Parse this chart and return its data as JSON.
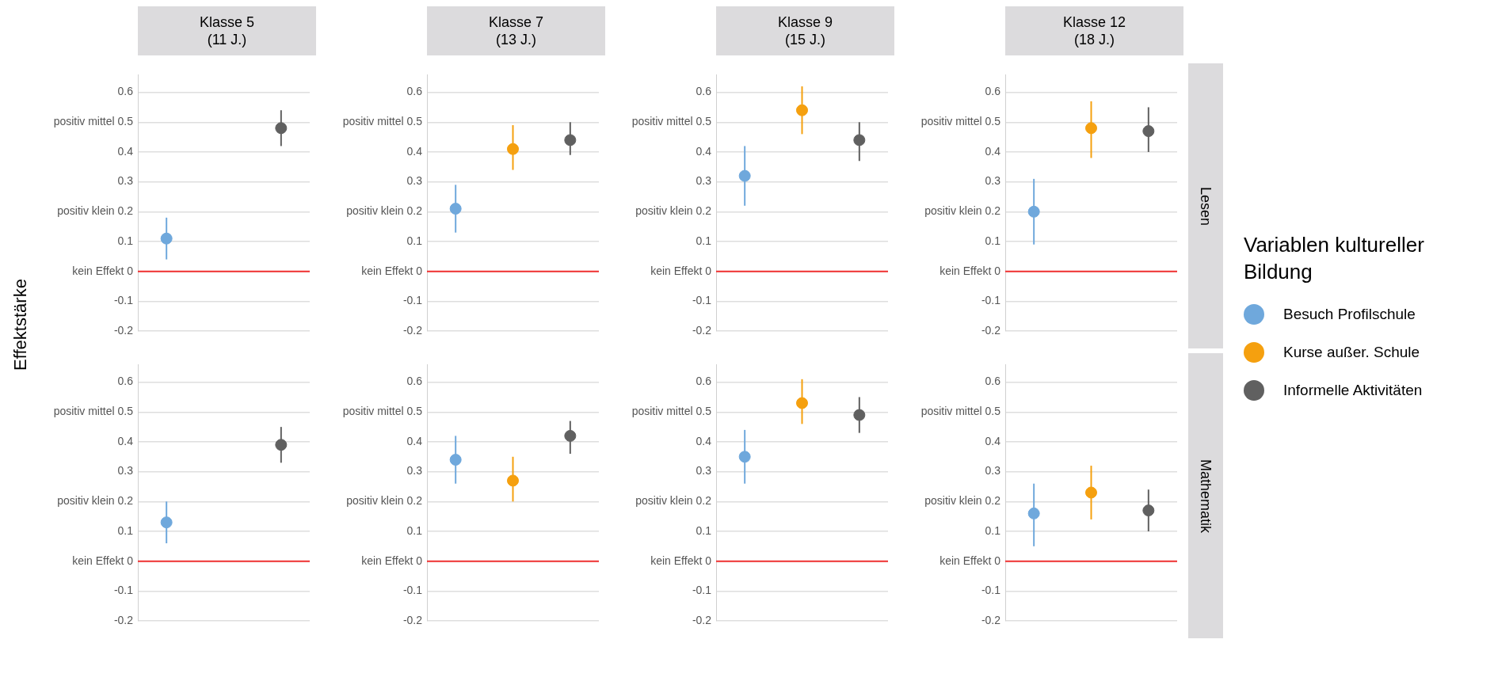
{
  "chart_data": [
    {
      "type": "scatter",
      "title": "Klasse 5\n(11 J.)",
      "ylabel": "Effektstärke",
      "categories": [
        null,
        null,
        null
      ],
      "ylim": [
        -0.2,
        0.66
      ],
      "yticks": [
        {
          "value": -0.2,
          "label": "-0.2"
        },
        {
          "value": -0.1,
          "label": "-0.1"
        },
        {
          "value": 0,
          "label": "kein Effekt 0"
        },
        {
          "value": 0.1,
          "label": "0.1"
        },
        {
          "value": 0.2,
          "label": "positiv klein 0.2"
        },
        {
          "value": 0.3,
          "label": "0.3"
        },
        {
          "value": 0.4,
          "label": "0.4"
        },
        {
          "value": 0.5,
          "label": "positiv mittel 0.5"
        },
        {
          "value": 0.6,
          "label": "0.6"
        }
      ],
      "grid": "y",
      "marker": "circle",
      "ref_lines": [
        {
          "axis": "y",
          "value": 0,
          "color": "#f03030"
        }
      ],
      "series": [
        {
          "color": "#6fa8dc",
          "values": [
            0.11,
            null,
            null
          ],
          "errors": [
            [
              0.04,
              0.18
            ],
            null,
            null
          ]
        },
        {
          "color": "#606060",
          "values": [
            null,
            null,
            0.48
          ],
          "errors": [
            null,
            null,
            [
              0.42,
              0.54
            ]
          ]
        }
      ]
    },
    {
      "type": "scatter",
      "title": "Klasse 7\n(13 J.)",
      "categories": [
        null,
        null,
        null
      ],
      "ylim": [
        -0.2,
        0.66
      ],
      "yticks": [
        {
          "value": -0.2,
          "label": "-0.2"
        },
        {
          "value": -0.1,
          "label": "-0.1"
        },
        {
          "value": 0,
          "label": "kein Effekt 0"
        },
        {
          "value": 0.1,
          "label": "0.1"
        },
        {
          "value": 0.2,
          "label": "positiv klein 0.2"
        },
        {
          "value": 0.3,
          "label": "0.3"
        },
        {
          "value": 0.4,
          "label": "0.4"
        },
        {
          "value": 0.5,
          "label": "positiv mittel 0.5"
        },
        {
          "value": 0.6,
          "label": "0.6"
        }
      ],
      "grid": "y",
      "marker": "circle",
      "ref_lines": [
        {
          "axis": "y",
          "value": 0,
          "color": "#f03030"
        }
      ],
      "series": [
        {
          "color": "#6fa8dc",
          "values": [
            0.21,
            null,
            null
          ],
          "errors": [
            [
              0.13,
              0.29
            ],
            null,
            null
          ]
        },
        {
          "color": "#f5a00f",
          "values": [
            null,
            0.41,
            null
          ],
          "errors": [
            null,
            [
              0.34,
              0.49
            ],
            null
          ]
        },
        {
          "color": "#606060",
          "values": [
            null,
            null,
            0.44
          ],
          "errors": [
            null,
            null,
            [
              0.39,
              0.5
            ]
          ]
        }
      ]
    },
    {
      "type": "scatter",
      "title": "Klasse 9\n(15 J.)",
      "categories": [
        null,
        null,
        null
      ],
      "ylim": [
        -0.2,
        0.66
      ],
      "yticks": [
        {
          "value": -0.2,
          "label": "-0.2"
        },
        {
          "value": -0.1,
          "label": "-0.1"
        },
        {
          "value": 0,
          "label": "kein Effekt 0"
        },
        {
          "value": 0.1,
          "label": "0.1"
        },
        {
          "value": 0.2,
          "label": "positiv klein 0.2"
        },
        {
          "value": 0.3,
          "label": "0.3"
        },
        {
          "value": 0.4,
          "label": "0.4"
        },
        {
          "value": 0.5,
          "label": "positiv mittel 0.5"
        },
        {
          "value": 0.6,
          "label": "0.6"
        }
      ],
      "grid": "y",
      "marker": "circle",
      "ref_lines": [
        {
          "axis": "y",
          "value": 0,
          "color": "#f03030"
        }
      ],
      "series": [
        {
          "color": "#6fa8dc",
          "values": [
            0.32,
            null,
            null
          ],
          "errors": [
            [
              0.22,
              0.42
            ],
            null,
            null
          ]
        },
        {
          "color": "#f5a00f",
          "values": [
            null,
            0.54,
            null
          ],
          "errors": [
            null,
            [
              0.46,
              0.62
            ],
            null
          ]
        },
        {
          "color": "#606060",
          "values": [
            null,
            null,
            0.44
          ],
          "errors": [
            null,
            null,
            [
              0.37,
              0.5
            ]
          ]
        }
      ]
    },
    {
      "type": "scatter",
      "title": "Klasse 12\n(18 J.)",
      "y2label": "Lesen",
      "legend": "right",
      "legend_title": "Variablen kultureller Bildung",
      "categories": [
        null,
        null,
        null
      ],
      "ylim": [
        -0.2,
        0.66
      ],
      "yticks": [
        {
          "value": -0.2,
          "label": "-0.2"
        },
        {
          "value": -0.1,
          "label": "-0.1"
        },
        {
          "value": 0,
          "label": "kein Effekt 0"
        },
        {
          "value": 0.1,
          "label": "0.1"
        },
        {
          "value": 0.2,
          "label": "positiv klein 0.2"
        },
        {
          "value": 0.3,
          "label": "0.3"
        },
        {
          "value": 0.4,
          "label": "0.4"
        },
        {
          "value": 0.5,
          "label": "positiv mittel 0.5"
        },
        {
          "value": 0.6,
          "label": "0.6"
        }
      ],
      "grid": "y",
      "marker": "circle",
      "ref_lines": [
        {
          "axis": "y",
          "value": 0,
          "color": "#f03030"
        }
      ],
      "series": [
        {
          "name": "Besuch Profilschule",
          "color": "#6fa8dc",
          "values": [
            0.2,
            null,
            null
          ],
          "errors": [
            [
              0.09,
              0.31
            ],
            null,
            null
          ]
        },
        {
          "name": "Kurse außer. Schule",
          "color": "#f5a00f",
          "values": [
            null,
            0.48,
            null
          ],
          "errors": [
            null,
            [
              0.38,
              0.57
            ],
            null
          ]
        },
        {
          "name": "Informelle Aktivitäten",
          "color": "#606060",
          "values": [
            null,
            null,
            0.47
          ],
          "errors": [
            null,
            null,
            [
              0.4,
              0.55
            ]
          ]
        }
      ]
    },
    {
      "type": "scatter",
      "categories": [
        null,
        null,
        null
      ],
      "ylim": [
        -0.2,
        0.66
      ],
      "yticks": [
        {
          "value": -0.2,
          "label": "-0.2"
        },
        {
          "value": -0.1,
          "label": "-0.1"
        },
        {
          "value": 0,
          "label": "kein Effekt 0"
        },
        {
          "value": 0.1,
          "label": "0.1"
        },
        {
          "value": 0.2,
          "label": "positiv klein 0.2"
        },
        {
          "value": 0.3,
          "label": "0.3"
        },
        {
          "value": 0.4,
          "label": "0.4"
        },
        {
          "value": 0.5,
          "label": "positiv mittel 0.5"
        },
        {
          "value": 0.6,
          "label": "0.6"
        }
      ],
      "grid": "y",
      "marker": "circle",
      "ref_lines": [
        {
          "axis": "y",
          "value": 0,
          "color": "#f03030"
        }
      ],
      "series": [
        {
          "color": "#6fa8dc",
          "values": [
            0.13,
            null,
            null
          ],
          "errors": [
            [
              0.06,
              0.2
            ],
            null,
            null
          ]
        },
        {
          "color": "#606060",
          "values": [
            null,
            null,
            0.39
          ],
          "errors": [
            null,
            null,
            [
              0.33,
              0.45
            ]
          ]
        }
      ]
    },
    {
      "type": "scatter",
      "categories": [
        null,
        null,
        null
      ],
      "ylim": [
        -0.2,
        0.66
      ],
      "yticks": [
        {
          "value": -0.2,
          "label": "-0.2"
        },
        {
          "value": -0.1,
          "label": "-0.1"
        },
        {
          "value": 0,
          "label": "kein Effekt 0"
        },
        {
          "value": 0.1,
          "label": "0.1"
        },
        {
          "value": 0.2,
          "label": "positiv klein 0.2"
        },
        {
          "value": 0.3,
          "label": "0.3"
        },
        {
          "value": 0.4,
          "label": "0.4"
        },
        {
          "value": 0.5,
          "label": "positiv mittel 0.5"
        },
        {
          "value": 0.6,
          "label": "0.6"
        }
      ],
      "grid": "y",
      "marker": "circle",
      "ref_lines": [
        {
          "axis": "y",
          "value": 0,
          "color": "#f03030"
        }
      ],
      "series": [
        {
          "color": "#6fa8dc",
          "values": [
            0.34,
            null,
            null
          ],
          "errors": [
            [
              0.26,
              0.42
            ],
            null,
            null
          ]
        },
        {
          "color": "#f5a00f",
          "values": [
            null,
            0.27,
            null
          ],
          "errors": [
            null,
            [
              0.2,
              0.35
            ],
            null
          ]
        },
        {
          "color": "#606060",
          "values": [
            null,
            null,
            0.42
          ],
          "errors": [
            null,
            null,
            [
              0.36,
              0.47
            ]
          ]
        }
      ]
    },
    {
      "type": "scatter",
      "categories": [
        null,
        null,
        null
      ],
      "ylim": [
        -0.2,
        0.66
      ],
      "yticks": [
        {
          "value": -0.2,
          "label": "-0.2"
        },
        {
          "value": -0.1,
          "label": "-0.1"
        },
        {
          "value": 0,
          "label": "kein Effekt 0"
        },
        {
          "value": 0.1,
          "label": "0.1"
        },
        {
          "value": 0.2,
          "label": "positiv klein 0.2"
        },
        {
          "value": 0.3,
          "label": "0.3"
        },
        {
          "value": 0.4,
          "label": "0.4"
        },
        {
          "value": 0.5,
          "label": "positiv mittel 0.5"
        },
        {
          "value": 0.6,
          "label": "0.6"
        }
      ],
      "grid": "y",
      "marker": "circle",
      "ref_lines": [
        {
          "axis": "y",
          "value": 0,
          "color": "#f03030"
        }
      ],
      "series": [
        {
          "color": "#6fa8dc",
          "values": [
            0.35,
            null,
            null
          ],
          "errors": [
            [
              0.26,
              0.44
            ],
            null,
            null
          ]
        },
        {
          "color": "#f5a00f",
          "values": [
            null,
            0.53,
            null
          ],
          "errors": [
            null,
            [
              0.46,
              0.61
            ],
            null
          ]
        },
        {
          "color": "#606060",
          "values": [
            null,
            null,
            0.49
          ],
          "errors": [
            null,
            null,
            [
              0.43,
              0.55
            ]
          ]
        }
      ]
    },
    {
      "type": "scatter",
      "y2label": "Mathematik",
      "categories": [
        null,
        null,
        null
      ],
      "ylim": [
        -0.2,
        0.66
      ],
      "yticks": [
        {
          "value": -0.2,
          "label": "-0.2"
        },
        {
          "value": -0.1,
          "label": "-0.1"
        },
        {
          "value": 0,
          "label": "kein Effekt 0"
        },
        {
          "value": 0.1,
          "label": "0.1"
        },
        {
          "value": 0.2,
          "label": "positiv klein 0.2"
        },
        {
          "value": 0.3,
          "label": "0.3"
        },
        {
          "value": 0.4,
          "label": "0.4"
        },
        {
          "value": 0.5,
          "label": "positiv mittel 0.5"
        },
        {
          "value": 0.6,
          "label": "0.6"
        }
      ],
      "grid": "y",
      "marker": "circle",
      "ref_lines": [
        {
          "axis": "y",
          "value": 0,
          "color": "#f03030"
        }
      ],
      "series": [
        {
          "color": "#6fa8dc",
          "values": [
            0.16,
            null,
            null
          ],
          "errors": [
            [
              0.05,
              0.26
            ],
            null,
            null
          ]
        },
        {
          "color": "#f5a00f",
          "values": [
            null,
            0.23,
            null
          ],
          "errors": [
            null,
            [
              0.14,
              0.32
            ],
            null
          ]
        },
        {
          "color": "#606060",
          "values": [
            null,
            null,
            0.17
          ],
          "errors": [
            null,
            null,
            [
              0.1,
              0.24
            ]
          ]
        }
      ]
    }
  ]
}
